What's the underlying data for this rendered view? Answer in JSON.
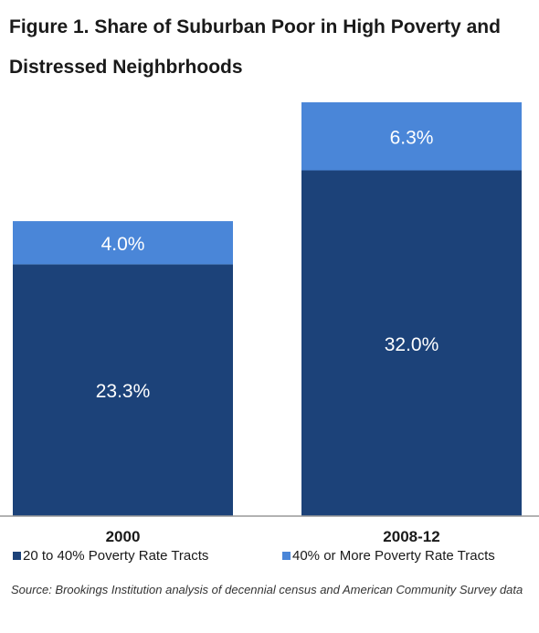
{
  "chart_data": {
    "type": "bar",
    "stacked": true,
    "title": "Figure 1. Share of Suburban Poor in High Poverty and Distressed Neighbrhoods",
    "categories": [
      "2000",
      "2008-12"
    ],
    "series": [
      {
        "name": "20 to 40% Poverty Rate Tracts",
        "values": [
          23.3,
          32.0
        ],
        "labels": [
          "23.3%",
          "32.0%"
        ],
        "color": "#1c4279"
      },
      {
        "name": "40% or More Poverty Rate Tracts",
        "values": [
          4.0,
          6.3
        ],
        "labels": [
          "4.0%",
          "6.3%"
        ],
        "color": "#4a86d8"
      }
    ],
    "ylim": [
      0,
      38.3
    ],
    "grid": false,
    "legend_position": "bottom",
    "label_color": "#ffffff"
  },
  "source": "Source: Brookings Institution analysis of decennial census and American Community Survey data"
}
